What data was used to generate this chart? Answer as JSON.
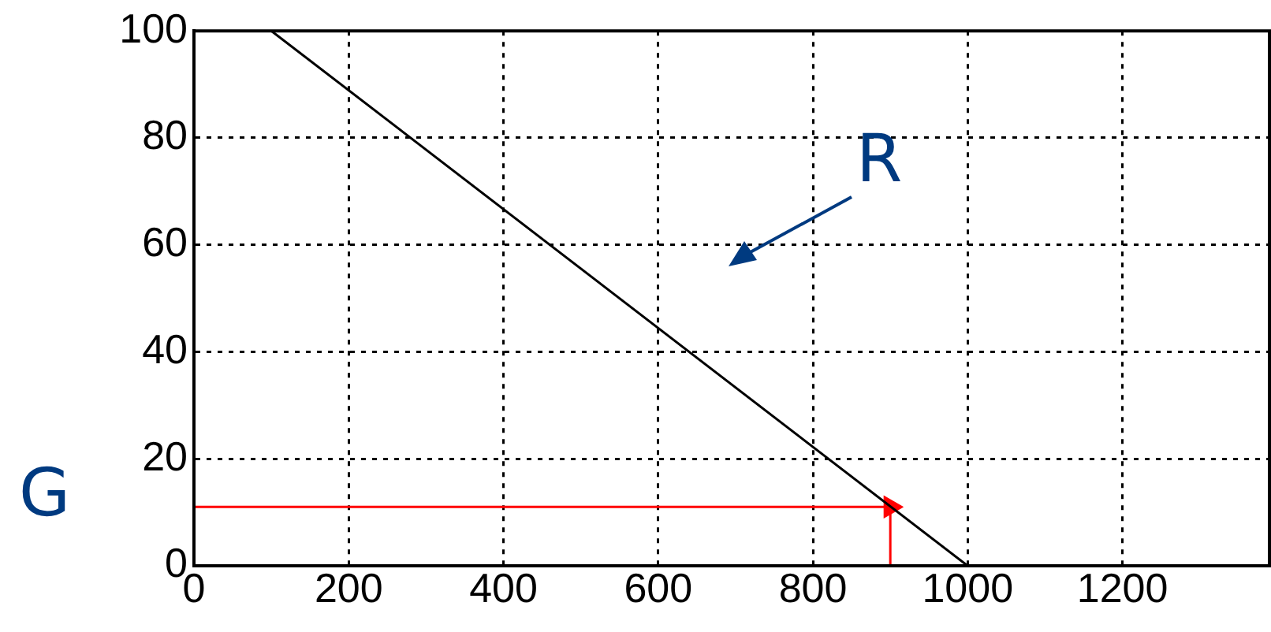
{
  "chart_data": {
    "type": "line",
    "series": [
      {
        "color": "#000000",
        "x": [
          100,
          1000
        ],
        "values": [
          100,
          0
        ]
      },
      {
        "color": "#ff0000",
        "x": [
          0,
          900,
          900
        ],
        "values": [
          11,
          11,
          0
        ]
      }
    ],
    "xlim": [
      0,
      1390
    ],
    "xticks": [
      0,
      200,
      400,
      600,
      800,
      1000,
      1200
    ],
    "ylim": [
      0,
      100
    ],
    "yticks": [
      0,
      20,
      40,
      60,
      80,
      100
    ],
    "annotations": [
      "R",
      "G"
    ],
    "grid": true,
    "legend": false,
    "marker": "none",
    "line_style": "solid"
  }
}
